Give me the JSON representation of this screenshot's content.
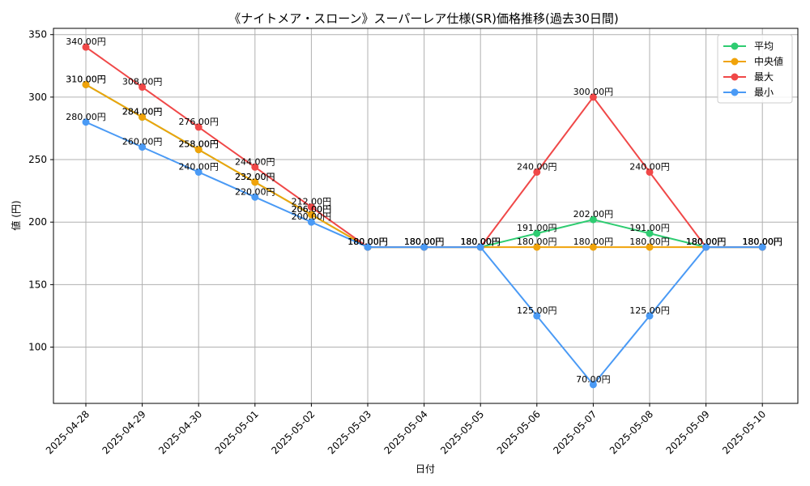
{
  "chart_data": {
    "type": "line",
    "title": "《ナイトメア・スローン》スーパーレア仕様(SR)価格推移(過去30日間)",
    "xlabel": "日付",
    "ylabel": "値 (円)",
    "categories": [
      "2025-04-28",
      "2025-04-29",
      "2025-04-30",
      "2025-05-01",
      "2025-05-02",
      "2025-05-03",
      "2025-05-04",
      "2025-05-05",
      "2025-05-06",
      "2025-05-07",
      "2025-05-08",
      "2025-05-09",
      "2025-05-10"
    ],
    "yticks": [
      100,
      150,
      200,
      250,
      300,
      350
    ],
    "ylim": [
      55,
      355
    ],
    "grid": true,
    "legend_position": "top-right",
    "value_suffix": "円",
    "series": [
      {
        "name": "平均",
        "color": "#2ecc71",
        "values": [
          310,
          284,
          258,
          232,
          206,
          180,
          180,
          180,
          191,
          202,
          191,
          180,
          180
        ]
      },
      {
        "name": "中央値",
        "color": "#f0a30a",
        "values": [
          310,
          284,
          258,
          232,
          206,
          180,
          180,
          180,
          180,
          180,
          180,
          180,
          180
        ]
      },
      {
        "name": "最大",
        "color": "#f04848",
        "values": [
          340,
          308,
          276,
          244,
          212,
          180,
          180,
          180,
          240,
          300,
          240,
          180,
          180
        ]
      },
      {
        "name": "最小",
        "color": "#4a9af5",
        "values": [
          280,
          260,
          240,
          220,
          200,
          180,
          180,
          180,
          125,
          70,
          125,
          180,
          180
        ]
      }
    ]
  }
}
